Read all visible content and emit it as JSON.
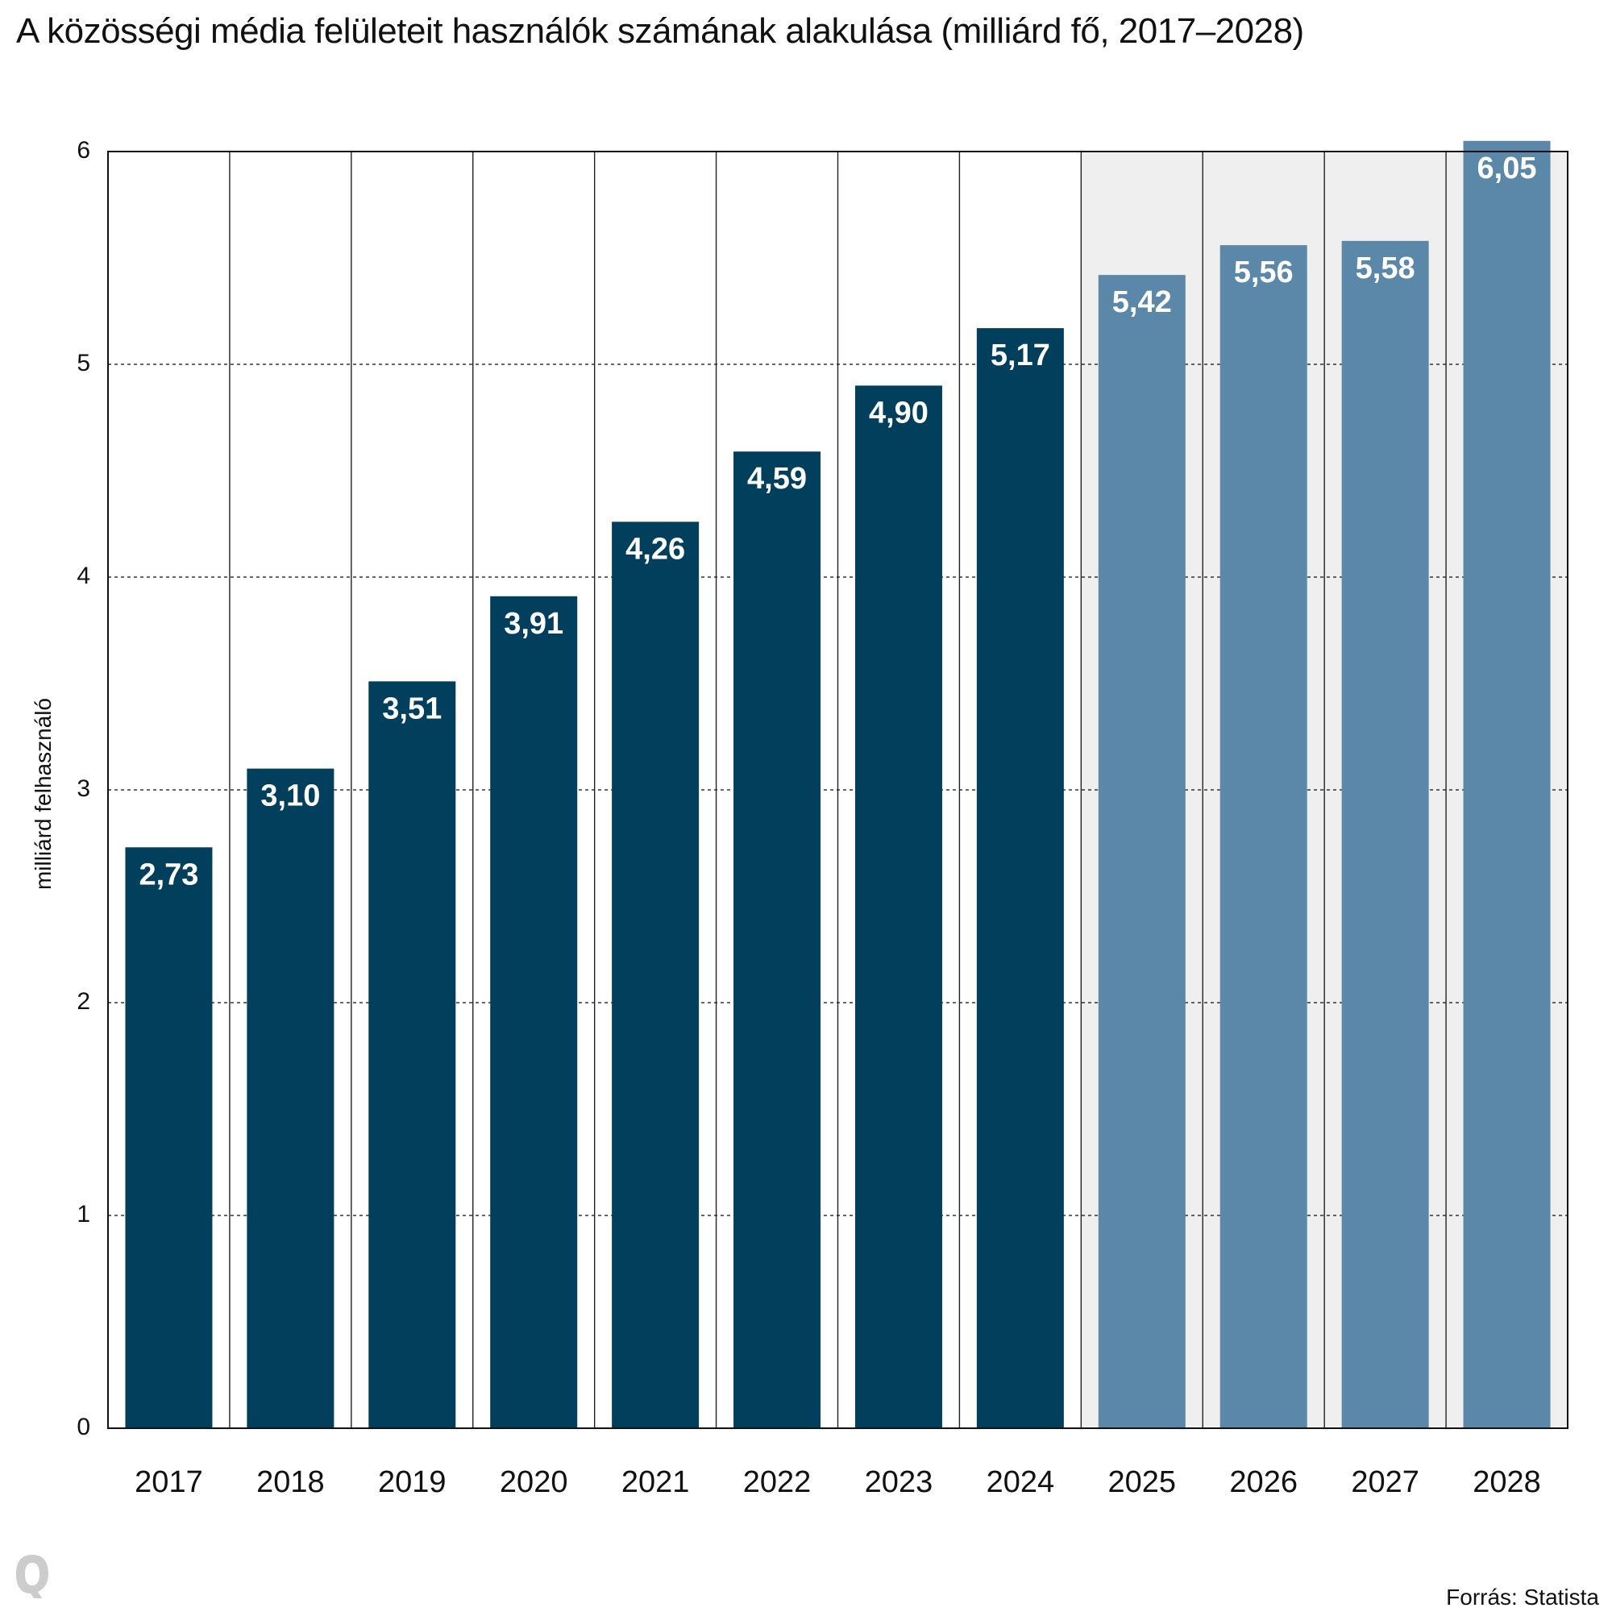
{
  "title": "A közösségi média felületeit használók számának alakulása (milliárd fő, 2017–2028)",
  "source": "Forrás: Statista",
  "logo": "Q",
  "colors": {
    "actual": "#023f5c",
    "forecast": "#5b88a8",
    "forecast_bg": "#efefef",
    "grid": "#333333"
  },
  "chart_data": {
    "type": "bar",
    "title": "A közösségi média felületeit használók számának alakulása (milliárd fő, 2017–2028)",
    "xlabel": "",
    "ylabel": "milliárd felhasználó",
    "ylim": [
      0,
      6
    ],
    "yticks": [
      0,
      1,
      2,
      3,
      4,
      5,
      6
    ],
    "ytick_labels": [
      "0",
      "1",
      "2",
      "3",
      "4",
      "5",
      "6"
    ],
    "categories": [
      "2017",
      "2018",
      "2019",
      "2020",
      "2021",
      "2022",
      "2023",
      "2024",
      "2025",
      "2026",
      "2027",
      "2028"
    ],
    "values": [
      2.73,
      3.1,
      3.51,
      3.91,
      4.26,
      4.59,
      4.9,
      5.17,
      5.42,
      5.56,
      5.58,
      6.05
    ],
    "value_labels": [
      "2,73",
      "3,10",
      "3,51",
      "3,91",
      "4,26",
      "4,59",
      "4,90",
      "5,17",
      "5,42",
      "5,56",
      "5,58",
      "6,05"
    ],
    "forecast_from": "2025",
    "grid": true,
    "legend": "none"
  }
}
